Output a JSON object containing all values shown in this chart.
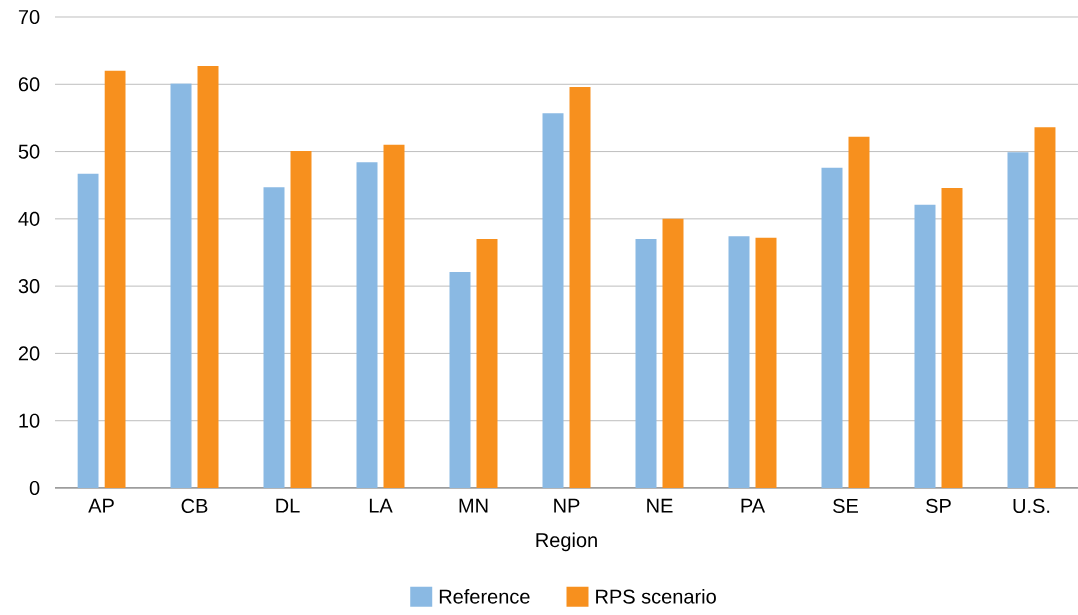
{
  "chart_data": {
    "type": "bar",
    "xlabel": "Region",
    "categories": [
      "AP",
      "CB",
      "DL",
      "LA",
      "MN",
      "NP",
      "NE",
      "PA",
      "SE",
      "SP",
      "U.S."
    ],
    "series": [
      {
        "name": "Reference",
        "color": "#8ab9e3",
        "values": [
          46.7,
          60.1,
          44.7,
          48.4,
          32.1,
          55.7,
          37.0,
          37.4,
          47.6,
          42.1,
          49.9
        ]
      },
      {
        "name": "RPS scenario",
        "color": "#f7901e",
        "values": [
          62.0,
          62.7,
          50.1,
          51.0,
          37.0,
          59.6,
          40.0,
          37.2,
          52.2,
          44.6,
          53.6
        ]
      }
    ],
    "ylim": [
      0,
      70
    ],
    "yticks": [
      0,
      10,
      20,
      30,
      40,
      50,
      60,
      70
    ],
    "grid": "y",
    "legend": "bottom"
  }
}
